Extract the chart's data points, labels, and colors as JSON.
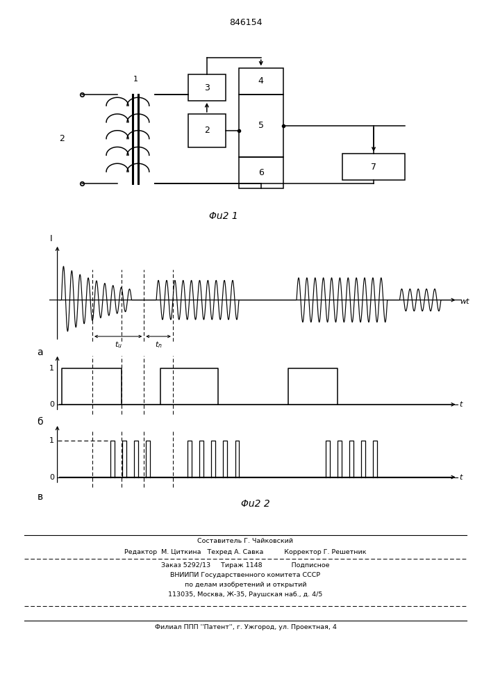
{
  "title": "846154",
  "fig1_caption": "Φu2 1",
  "fig2_caption": "Φu2 2",
  "background": "#ffffff",
  "text_color": "#000000",
  "footer_line1": "Составитель Г. Чайковский",
  "footer_line2": "Редактор  М. Циткина   Техред А. Савка          Корректор Г. Решетник",
  "footer_line3": "Заказ 5292/13     Тираж 1148              Подписное",
  "footer_line4": "ВНИИПИ Государственного комитета СССР",
  "footer_line5": "по делам изобретений и открытий",
  "footer_line6": "113035, Москва, Ж-35, Раушская наб., д. 4/5",
  "footer_line7": "Филиал ППП ''Патент'', г. Ужгород, ул. Проектная, 4"
}
